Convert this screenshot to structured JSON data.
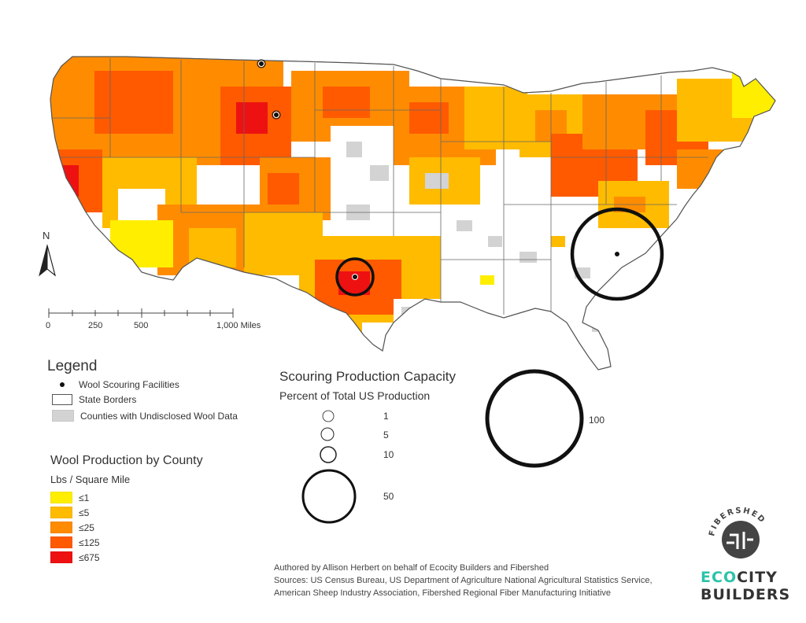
{
  "north_arrow": {
    "label": "N"
  },
  "scale_bar": {
    "ticks": [
      "0",
      "250",
      "500",
      "1,000 Miles"
    ]
  },
  "legend": {
    "title": "Legend",
    "items": [
      {
        "label": "Wool Scouring Facilities",
        "symbol": "dot"
      },
      {
        "label": "State Borders",
        "symbol": "outline"
      },
      {
        "label": "Counties with Undisclosed Wool Data",
        "symbol": "gray",
        "color": "#d3d3d3"
      }
    ]
  },
  "wool_production": {
    "title": "Wool Production by County",
    "unit": "Lbs / Square Mile",
    "classes": [
      {
        "label": "≤1",
        "color": "#ffee00"
      },
      {
        "label": "≤5",
        "color": "#ffbb00"
      },
      {
        "label": "≤25",
        "color": "#ff8c00"
      },
      {
        "label": "≤125",
        "color": "#ff5a00"
      },
      {
        "label": "≤675",
        "color": "#ee1111"
      }
    ]
  },
  "scouring_capacity": {
    "title": "Scouring Production Capacity",
    "subtitle": "Percent of Total US Production",
    "sizes": [
      {
        "label": "1",
        "value": 1
      },
      {
        "label": "5",
        "value": 5
      },
      {
        "label": "10",
        "value": 10
      },
      {
        "label": "50",
        "value": 50
      },
      {
        "label": "100",
        "value": 100
      }
    ]
  },
  "facilities": [
    {
      "name": "Montana",
      "capacity_percent": 1
    },
    {
      "name": "Wyoming",
      "capacity_percent": 1
    },
    {
      "name": "Texas",
      "capacity_percent": 20
    },
    {
      "name": "South Carolina",
      "capacity_percent": 75
    }
  ],
  "credits": {
    "line1": "Authored by Allison Herbert on behalf of Ecocity Builders and Fibershed",
    "line2": "Sources: US Census Bureau, US Department of Agriculture National Agricultural Statistics Service,",
    "line3": "American Sheep Industry Association, Fibershed Regional Fiber Manufacturing Initiative"
  },
  "logos": {
    "fibershed": "FIBERSHED",
    "ecocity_eco": "EC",
    "ecocity_o": "O",
    "ecocity_city": "CITY",
    "builders": "BUILDERS",
    "accent_color": "#2cc3a8"
  }
}
